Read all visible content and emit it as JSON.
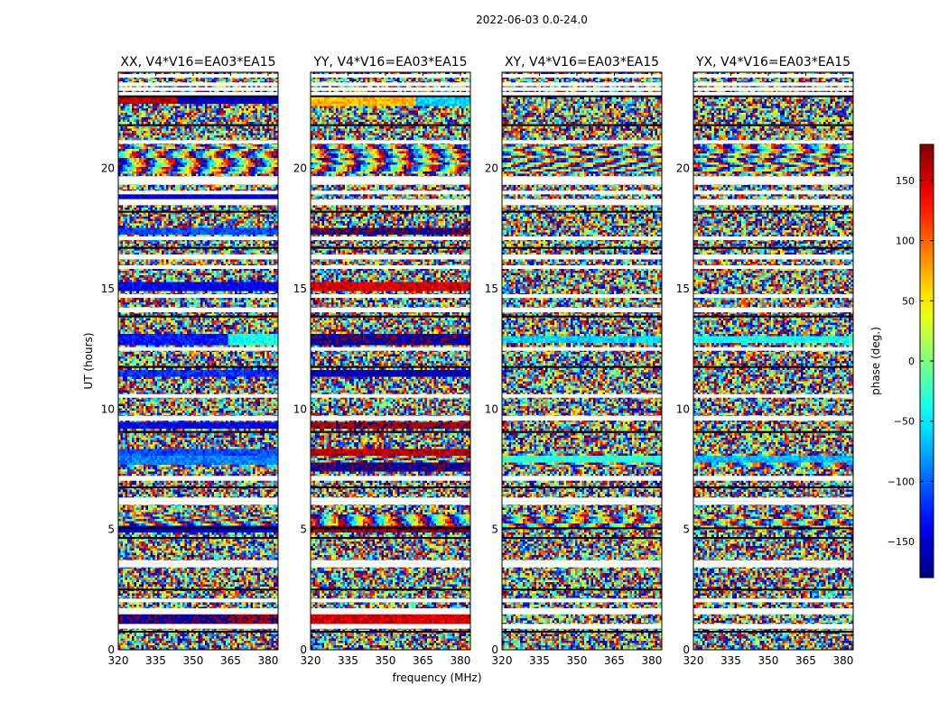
{
  "chart_data": {
    "type": "heatmap",
    "suptitle": "2022-06-03 0.0-24.0",
    "xlabel": "frequency (MHz)",
    "ylabel": "UT (hours)",
    "xlim": [
      320,
      384
    ],
    "ylim": [
      0,
      24
    ],
    "xticks": [
      320,
      335,
      350,
      365,
      380
    ],
    "yticks": [
      0,
      5,
      10,
      15,
      20
    ],
    "colormap": "jet",
    "colorbar": {
      "label": "phase (deg.)",
      "range": [
        -180,
        180
      ],
      "ticks": [
        -150,
        -100,
        -50,
        0,
        50,
        100,
        150
      ],
      "tick_labels": [
        "−150",
        "−100",
        "−50",
        "0",
        "50",
        "100",
        "150"
      ]
    },
    "panels": [
      {
        "title": "XX, V4*V16=EA03*EA15",
        "bands": [
          {
            "t": 1.25,
            "h": 0.4,
            "phase": -170,
            "f_end": 364,
            "phase2": 170
          },
          {
            "t": 5.0,
            "h": 0.18,
            "phase": -150
          },
          {
            "t": 7.9,
            "h": 0.35,
            "phase": -90
          },
          {
            "t": 8.2,
            "h": 0.18,
            "phase": -110
          },
          {
            "t": 9.3,
            "h": 0.2,
            "phase": -140
          },
          {
            "t": 11.5,
            "h": 0.2,
            "phase": -120
          },
          {
            "t": 12.9,
            "h": 0.35,
            "phase": -130,
            "f_end": 364,
            "phase2": -40
          },
          {
            "t": 15.1,
            "h": 0.2,
            "phase": -140
          },
          {
            "t": 17.4,
            "h": 0.2,
            "phase": -110
          },
          {
            "t": 18.8,
            "h": 0.18,
            "phase": -150
          },
          {
            "t": 22.9,
            "h": 0.35,
            "phase": 160,
            "f_end": 344,
            "phase2": -160
          }
        ]
      },
      {
        "title": "YY, V4*V16=EA03*EA15",
        "bands": [
          {
            "t": 1.25,
            "h": 0.4,
            "phase": 150
          },
          {
            "t": 5.0,
            "h": 0.18,
            "phase": 170
          },
          {
            "t": 7.6,
            "h": 0.25,
            "phase": -170
          },
          {
            "t": 8.2,
            "h": 0.2,
            "phase": 160
          },
          {
            "t": 9.3,
            "h": 0.2,
            "phase": 170
          },
          {
            "t": 11.5,
            "h": 0.2,
            "phase": -160
          },
          {
            "t": 12.9,
            "h": 0.35,
            "phase": -170
          },
          {
            "t": 15.1,
            "h": 0.25,
            "phase": 150
          },
          {
            "t": 17.4,
            "h": 0.2,
            "phase": -175
          },
          {
            "t": 22.8,
            "h": 0.35,
            "phase": 70,
            "f_end": 362,
            "phase2": -60
          }
        ]
      },
      {
        "title": "XY, V4*V16=EA03*EA15",
        "bands": [
          {
            "t": 12.9,
            "h": 0.2,
            "phase": -60
          },
          {
            "t": 7.9,
            "h": 0.2,
            "phase": -30
          }
        ]
      },
      {
        "title": "YX, V4*V16=EA03*EA15",
        "bands": [
          {
            "t": 12.9,
            "h": 0.2,
            "phase": -40
          },
          {
            "t": 7.9,
            "h": 0.2,
            "phase": -70
          }
        ]
      }
    ],
    "blank_rows_ut": [
      0.95,
      1.0,
      1.55,
      1.65,
      2.05,
      3.5,
      3.65,
      6.1,
      6.25,
      7.1,
      7.15,
      9.6,
      9.65,
      10.55,
      12.5,
      14.1,
      14.15,
      14.7,
      15.9,
      16.3,
      16.35,
      17.1,
      18.55,
      18.65,
      19.0,
      19.4,
      19.5,
      19.6,
      21.1,
      23.1,
      23.3,
      23.5,
      23.85
    ],
    "black_rows_ut": [
      0.75,
      2.5,
      4.65,
      5.05,
      6.75,
      9.05,
      11.75,
      13.85,
      16.7,
      18.2,
      21.8,
      23.0
    ],
    "striped_segments_ut": [
      [
        19.8,
        21.0
      ],
      [
        7.6,
        8.2
      ],
      [
        5.0,
        5.6
      ]
    ]
  }
}
